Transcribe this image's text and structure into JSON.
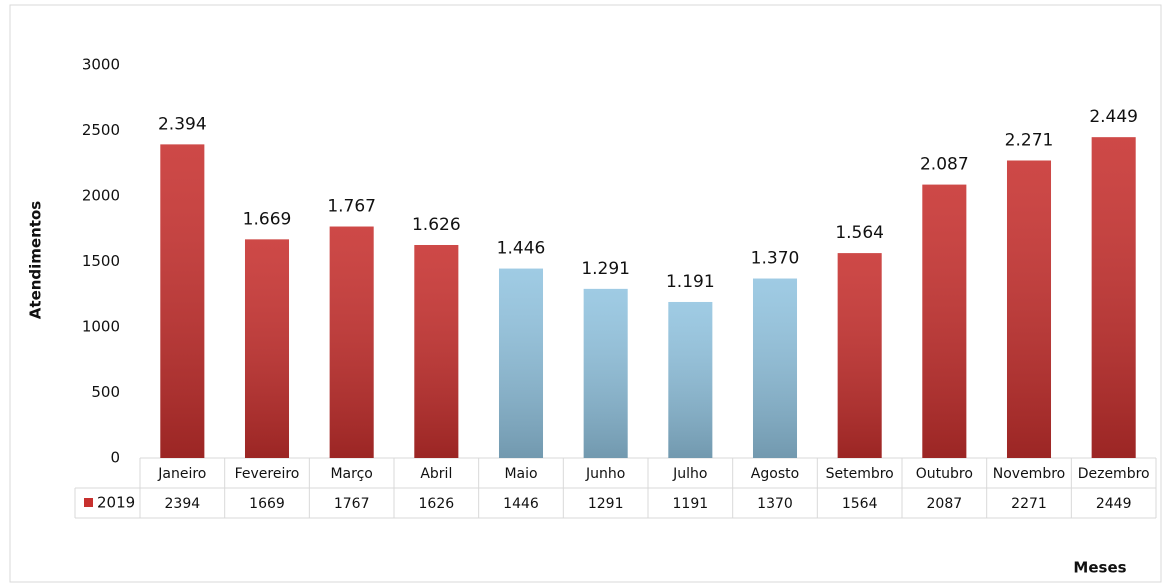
{
  "chart_data": {
    "type": "bar",
    "y_label": "Atendimentos",
    "x_label": "Meses",
    "categories": [
      "Janeiro",
      "Fevereiro",
      "Março",
      "Abril",
      "Maio",
      "Junho",
      "Julho",
      "Agosto",
      "Setembro",
      "Outubro",
      "Novembro",
      "Dezembro"
    ],
    "series": [
      {
        "name": "2019",
        "color": "#c7302e",
        "values": [
          2394,
          1669,
          1767,
          1626,
          1446,
          1291,
          1191,
          1370,
          1564,
          2087,
          2271,
          2449
        ],
        "value_labels": [
          "2.394",
          "1.669",
          "1.767",
          "1.626",
          "1.446",
          "1.291",
          "1.191",
          "1.370",
          "1.564",
          "2.087",
          "2.271",
          "2.449"
        ]
      }
    ],
    "bar_colors": [
      "#c7302e",
      "#c7302e",
      "#c7302e",
      "#c7302e",
      "#92c4e0",
      "#92c4e0",
      "#92c4e0",
      "#92c4e0",
      "#c7302e",
      "#c7302e",
      "#c7302e",
      "#c7302e"
    ],
    "ylim": [
      0,
      3000
    ],
    "yticks": [
      0,
      500,
      1000,
      1500,
      2000,
      2500,
      3000
    ],
    "grid": false
  }
}
